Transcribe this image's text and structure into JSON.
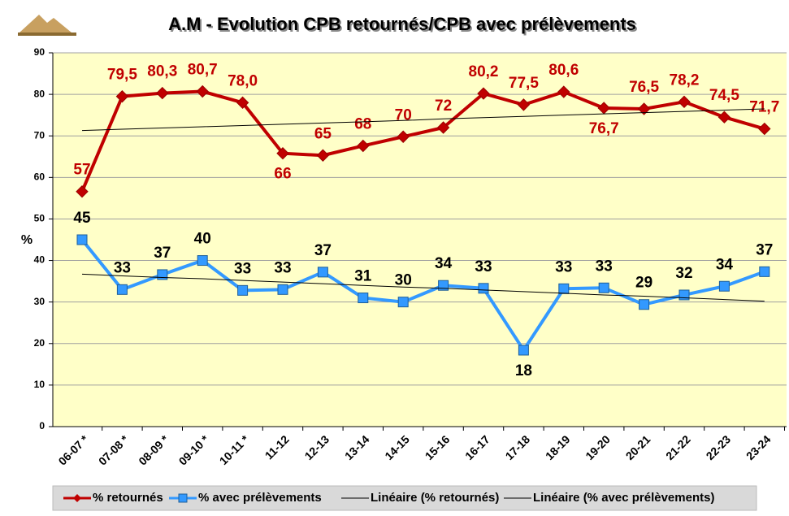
{
  "chart_data": {
    "type": "line",
    "title": "A.M - Evolution CPB retournés/CPB avec prélèvements",
    "y_label": "%",
    "categories": [
      "06-07 *",
      "07-08 *",
      "08-09 *",
      "09-10 *",
      "10-11 *",
      "11-12",
      "12-13",
      "13-14",
      "14-15",
      "15-16",
      "16-17",
      "17-18",
      "18-19",
      "19-20",
      "20-21",
      "21-22",
      "22-23",
      "23-24"
    ],
    "ylim": [
      0,
      90
    ],
    "yticks": [
      0,
      10,
      20,
      30,
      40,
      50,
      60,
      70,
      80,
      90
    ],
    "grid": true,
    "legend": "bottom",
    "series": [
      {
        "name": "% retournés",
        "color": "#c00000",
        "marker": "diamond",
        "values": [
          56.6,
          79.5,
          80.3,
          80.7,
          78.0,
          65.8,
          65.3,
          67.6,
          69.8,
          72.0,
          80.2,
          77.5,
          80.6,
          76.7,
          76.5,
          78.2,
          74.5,
          71.7
        ],
        "value_labels": [
          "57",
          "79,5",
          "80,3",
          "80,7",
          "78,0",
          "66",
          "65",
          "68",
          "70",
          "72",
          "80,2",
          "77,5",
          "80,6",
          "76,7",
          "76,5",
          "78,2",
          "74,5",
          "71,7"
        ]
      },
      {
        "name": "% avec prélèvements",
        "color": "#3399ff",
        "marker": "square",
        "values": [
          45.0,
          33.0,
          36.6,
          40.0,
          32.8,
          33.0,
          37.2,
          31.0,
          30.0,
          34.0,
          33.3,
          18.4,
          33.2,
          33.4,
          29.4,
          31.7,
          33.8,
          37.3
        ],
        "value_labels": [
          "45",
          "33",
          "37",
          "40",
          "33",
          "33",
          "37",
          "31",
          "30",
          "34",
          "33",
          "18",
          "33",
          "33",
          "29",
          "32",
          "34",
          "37"
        ]
      },
      {
        "name": "Linéaire (% retournés)",
        "color": "#000000",
        "marker": "none",
        "values": [
          71.3,
          71.6,
          71.9,
          72.2,
          72.5,
          72.8,
          73.1,
          73.4,
          73.7,
          74.1,
          74.4,
          74.7,
          75.0,
          75.3,
          75.6,
          75.9,
          76.2,
          76.5
        ]
      },
      {
        "name": "Linéaire (% avec prélèvements)",
        "color": "#000000",
        "marker": "none",
        "values": [
          36.7,
          36.3,
          35.9,
          35.6,
          35.2,
          34.8,
          34.4,
          34.0,
          33.6,
          33.3,
          32.9,
          32.5,
          32.1,
          31.7,
          31.4,
          31.0,
          30.6,
          30.2
        ]
      }
    ]
  }
}
